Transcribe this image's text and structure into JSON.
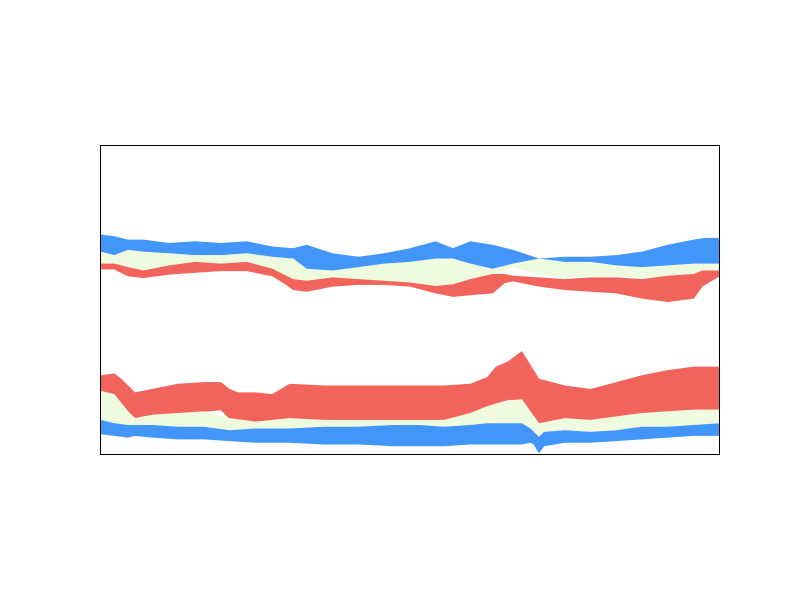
{
  "chart_data": {
    "type": "area",
    "title": "",
    "xlabel": "",
    "ylabel": "",
    "axes_visible": false,
    "grid": false,
    "legend": "none",
    "xlim": [
      0,
      360
    ],
    "ylim": [
      -90,
      90
    ],
    "series": [
      {
        "band": "north-blue",
        "color": "#4296f9",
        "x": [
          0,
          8,
          16,
          25,
          40,
          55,
          70,
          85,
          100,
          112,
          120,
          135,
          150,
          165,
          180,
          195,
          205,
          215,
          228,
          240,
          255,
          270,
          285,
          300,
          315,
          330,
          345,
          352,
          360
        ],
        "upper": [
          38,
          37,
          35,
          35,
          33,
          34,
          33,
          34,
          31,
          30,
          32,
          27,
          25,
          27,
          30,
          34,
          30,
          34,
          32,
          29,
          24,
          25,
          25,
          26,
          28,
          32,
          35,
          36,
          36
        ],
        "lower": [
          28,
          26,
          29,
          28,
          27,
          26,
          26,
          27,
          25,
          24,
          18,
          17,
          19,
          21,
          22,
          24,
          24,
          21,
          18,
          21,
          24,
          22,
          22,
          20,
          19,
          20,
          21,
          21,
          21
        ]
      },
      {
        "band": "north-pale",
        "color": "#effbde",
        "x": [
          0,
          8,
          16,
          25,
          40,
          55,
          70,
          85,
          100,
          112,
          120,
          135,
          150,
          165,
          180,
          195,
          205,
          215,
          228,
          240,
          255,
          270,
          285,
          300,
          315,
          330,
          345,
          352,
          360
        ],
        "upper": [
          28,
          26,
          29,
          28,
          27,
          26,
          26,
          27,
          25,
          24,
          18,
          17,
          19,
          21,
          22,
          24,
          24,
          21,
          18,
          21,
          24,
          22,
          22,
          20,
          19,
          20,
          21,
          21,
          21
        ],
        "lower": [
          21,
          21,
          19,
          17,
          20,
          22,
          21,
          22,
          18,
          12,
          11,
          13,
          12,
          11,
          10,
          8,
          9,
          12,
          15,
          19,
          15,
          13,
          14,
          14,
          13,
          14,
          15,
          17,
          17
        ]
      },
      {
        "band": "north-red",
        "color": "#f1635b",
        "x": [
          0,
          8,
          16,
          25,
          40,
          55,
          70,
          85,
          100,
          108,
          112,
          120,
          135,
          150,
          165,
          180,
          195,
          205,
          215,
          228,
          235,
          240,
          255,
          270,
          285,
          300,
          315,
          330,
          345,
          350,
          360
        ],
        "upper": [
          21,
          21,
          19,
          17,
          20,
          22,
          21,
          22,
          18,
          14,
          12,
          11,
          13,
          12,
          11,
          10,
          8,
          9,
          12,
          15,
          15,
          14,
          13,
          12,
          13,
          13,
          12,
          14,
          15,
          17,
          17
        ],
        "lower": [
          18,
          18,
          14,
          13,
          15,
          16,
          17,
          17,
          14,
          9,
          6,
          5,
          8,
          9,
          9,
          8,
          4,
          2,
          3,
          4,
          10,
          11,
          8,
          6,
          5,
          4,
          1,
          -1,
          1,
          8,
          14
        ]
      },
      {
        "band": "south-red",
        "color": "#f1635b",
        "x": [
          0,
          8,
          12,
          16,
          20,
          30,
          45,
          60,
          70,
          75,
          80,
          90,
          100,
          110,
          130,
          150,
          170,
          185,
          200,
          215,
          225,
          230,
          237,
          245,
          255,
          270,
          285,
          300,
          315,
          330,
          345,
          360
        ],
        "upper": [
          -44,
          -43,
          -46,
          -50,
          -54,
          -52,
          -49,
          -48,
          -48,
          -52,
          -54,
          -54,
          -55,
          -49,
          -50,
          -50,
          -50,
          -50,
          -50,
          -49,
          -45,
          -39,
          -36,
          -30,
          -46,
          -50,
          -52,
          -48,
          -44,
          -41,
          -39,
          -39
        ],
        "lower": [
          -53,
          -55,
          -62,
          -65,
          -69,
          -67,
          -66,
          -65,
          -64,
          -69,
          -70,
          -71,
          -72,
          -69,
          -70,
          -70,
          -70,
          -70,
          -70,
          -66,
          -62,
          -62,
          -58,
          -58,
          -72,
          -69,
          -70,
          -68,
          -66,
          -65,
          -64,
          -64
        ]
      },
      {
        "band": "south-pale",
        "color": "#effbde",
        "x": [
          0,
          8,
          16,
          20,
          30,
          45,
          60,
          75,
          90,
          110,
          130,
          150,
          170,
          185,
          200,
          215,
          225,
          235,
          245,
          255,
          270,
          285,
          300,
          315,
          330,
          345,
          360
        ],
        "upper": [
          -53,
          -55,
          -65,
          -69,
          -67,
          -66,
          -65,
          -69,
          -71,
          -69,
          -70,
          -70,
          -70,
          -70,
          -70,
          -66,
          -62,
          -59,
          -58,
          -72,
          -69,
          -70,
          -68,
          -66,
          -65,
          -64,
          -64
        ],
        "lower": [
          -70,
          -72,
          -73,
          -73,
          -73,
          -74,
          -74,
          -76,
          -75,
          -75,
          -74,
          -74,
          -73,
          -73,
          -74,
          -73,
          -72,
          -72,
          -72,
          -80,
          -76,
          -77,
          -76,
          -74,
          -74,
          -73,
          -72
        ]
      },
      {
        "band": "south-blue",
        "color": "#4296f9",
        "x": [
          0,
          8,
          16,
          20,
          30,
          45,
          60,
          75,
          90,
          110,
          130,
          150,
          170,
          185,
          200,
          215,
          225,
          235,
          245,
          250,
          252,
          255,
          258,
          270,
          285,
          300,
          315,
          330,
          345,
          360
        ],
        "upper": [
          -70,
          -72,
          -73,
          -73,
          -73,
          -74,
          -74,
          -76,
          -75,
          -75,
          -74,
          -74,
          -73,
          -73,
          -74,
          -73,
          -72,
          -72,
          -72,
          -75,
          -77,
          -80,
          -77,
          -76,
          -77,
          -76,
          -74,
          -74,
          -73,
          -72
        ],
        "lower": [
          -78,
          -79,
          -80,
          -79,
          -80,
          -81,
          -81,
          -82,
          -83,
          -83,
          -84,
          -84,
          -85,
          -85,
          -85,
          -84,
          -84,
          -84,
          -84,
          -83,
          -84,
          -89,
          -85,
          -83,
          -83,
          -82,
          -81,
          -80,
          -79,
          -79
        ]
      }
    ]
  }
}
